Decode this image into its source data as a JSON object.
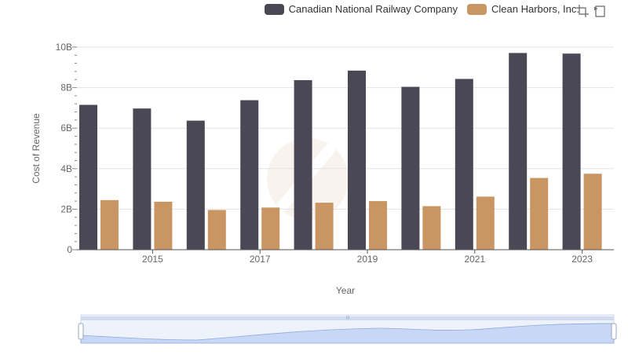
{
  "legend": [
    {
      "name": "Canadian National Railway Company",
      "color": "#4a4855"
    },
    {
      "name": "Clean Harbors, Inc.",
      "color": "#c89563"
    }
  ],
  "toolbox": [
    {
      "icon": "zoom-icon"
    },
    {
      "icon": "zoom-reset-icon"
    }
  ],
  "chart_data": {
    "type": "bar",
    "xlabel": "Year",
    "ylabel": "Cost of Revenue",
    "x_tick_labels": [
      "2015",
      "2017",
      "2019",
      "2021",
      "2023"
    ],
    "y_tick_labels": [
      "0",
      "2B",
      "4B",
      "6B",
      "8B",
      "10B"
    ],
    "ylim": [
      0,
      10000000000
    ],
    "categories": [
      "2014",
      "2015",
      "2016",
      "2017",
      "2018",
      "2019",
      "2020",
      "2021",
      "2022",
      "2023"
    ],
    "series": [
      {
        "name": "Canadian National Railway Company",
        "color": "#4a4855",
        "values": [
          7150000000,
          6970000000,
          6370000000,
          7380000000,
          8370000000,
          8840000000,
          8040000000,
          8430000000,
          9710000000,
          9680000000
        ]
      },
      {
        "name": "Clean Harbors, Inc.",
        "color": "#c89563",
        "values": [
          2450000000,
          2370000000,
          1960000000,
          2080000000,
          2320000000,
          2400000000,
          2150000000,
          2620000000,
          3540000000,
          3750000000
        ]
      }
    ],
    "grid": true,
    "legend_position": "top-right"
  }
}
